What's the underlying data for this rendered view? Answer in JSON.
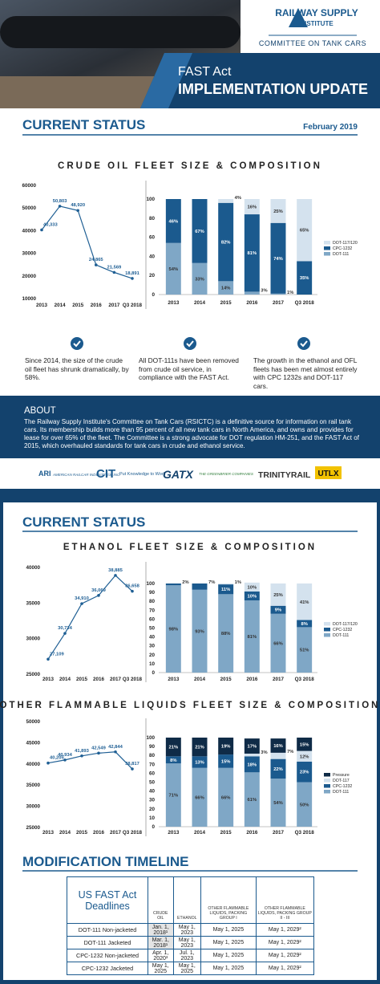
{
  "header": {
    "org_line1": "RAILWAY SUPPLY",
    "org_line2": "INSTITUTE",
    "committee": "COMMITTEE ON TANK CARS",
    "title": "FAST Act",
    "subtitle": "IMPLEMENTATION UPDATE"
  },
  "status": {
    "heading": "CURRENT STATUS",
    "date": "February 2019",
    "crude_title": "CRUDE OIL FLEET SIZE & COMPOSITION",
    "points": [
      "Since 2014, the size of the crude oil fleet has shrunk dramatically, by 58%.",
      "All DOT-111s have been removed from crude oil service, in compliance with the FAST Act.",
      "The growth in the ethanol and OFL fleets has been met almost entirely with CPC 1232s and DOT-117 cars."
    ]
  },
  "about": {
    "heading": "ABOUT",
    "text": "The Railway Supply Institute's Committee on Tank Cars (RSICTC) is a definitive source for information on rail tank cars. Its membership builds more than 95 percent of all new tank cars in North America, and owns and provides for lease for over 65% of the fleet. The Committee is a strong advocate for DOT regulation HM-251, and the FAST Act of 2015, which overhauled standards for tank cars in crude and ethanol service."
  },
  "logos": [
    {
      "mark": "ARI",
      "name": "AMERICAN RAILCAR INDUSTRIES, INC."
    },
    {
      "mark": "CIT",
      "name": "Put Knowledge to Work"
    },
    {
      "mark": "GATX"
    },
    {
      "mark": "THE GREENBRIER COMPANIES"
    },
    {
      "mark": "TRINITYRAIL"
    },
    {
      "mark": "UTLX"
    }
  ],
  "status2": {
    "heading": "CURRENT STATUS",
    "ethanol_title": "ETHANOL FLEET SIZE & COMPOSITION",
    "other_title": "OTHER FLAMMABLE LIQUIDS FLEET SIZE & COMPOSITION"
  },
  "timeline": {
    "heading": "MODIFICATION TIMELINE",
    "corner": "US FAST Act Deadlines",
    "columns": [
      "CRUDE OIL",
      "ETHANOL",
      "OTHER FLAMMABLE LIQUIDS, PACKING GROUP I",
      "OTHER FLAMMABLE LIQUIDS, PACKING GROUP II - III"
    ],
    "rows": [
      {
        "label": "DOT-111 Non-jacketed",
        "cells": [
          "Jan. 1, 2018¹",
          "May 1, 2023",
          "May 1, 2025",
          "May 1, 2029²"
        ]
      },
      {
        "label": "DOT-111 Jacketed",
        "cells": [
          "Mar. 1, 2018¹",
          "May 1, 2023",
          "May 1, 2025",
          "May 1, 2029²"
        ]
      },
      {
        "label": "CPC-1232 Non-jacketed",
        "cells": [
          "Apr. 1, 2020³",
          "Jul. 1, 2023",
          "May 1, 2025",
          "May 1, 2029²"
        ]
      },
      {
        "label": "CPC-1232 Jacketed",
        "cells": [
          "May 1, 2025",
          "May 1, 2025",
          "May 1, 2025",
          "May 1, 2029²"
        ]
      }
    ]
  },
  "chart_data": [
    {
      "type": "line",
      "categories": [
        "2013",
        "2014",
        "2015",
        "2016",
        "2017",
        "Q3 2018"
      ],
      "values": [
        40333,
        50803,
        48920,
        24865,
        21569,
        18891
      ],
      "value_labels": [
        "40,333",
        "50,803",
        "48,920",
        "24,865",
        "21,569",
        "18,891"
      ],
      "color": "#1f5f94",
      "ylim": [
        10000,
        60000
      ],
      "yticks": [
        10000,
        20000,
        30000,
        40000,
        50000,
        60000
      ]
    },
    {
      "type": "stacked_bar",
      "categories": [
        "2013",
        "2014",
        "2015",
        "2016",
        "2017",
        "Q3 2018"
      ],
      "ylim": [
        0,
        100
      ],
      "yticks": [
        0,
        20,
        40,
        60,
        80,
        100
      ],
      "series": [
        {
          "name": "DOT-111",
          "color": "#7fa7c6",
          "values": [
            54,
            33,
            14,
            3,
            1,
            0
          ],
          "value_labels": [
            "54%",
            "33%",
            "14%",
            "3%",
            "1%",
            null
          ]
        },
        {
          "name": "CPC-1232",
          "color": "#1b5a8e",
          "values": [
            46,
            67,
            82,
            81,
            74,
            35
          ],
          "value_labels": [
            "46%",
            "67%",
            "82%",
            "81%",
            "74%",
            "35%"
          ]
        },
        {
          "name": "DOT-117/120",
          "color": "#d4e2ee",
          "values": [
            0,
            0,
            4,
            16,
            25,
            65
          ],
          "value_labels": [
            null,
            null,
            "4%",
            "16%",
            "25%",
            "65%"
          ]
        }
      ]
    },
    {
      "type": "line",
      "categories": [
        "2013",
        "2014",
        "2015",
        "2016",
        "2017",
        "Q3 2018"
      ],
      "values": [
        27109,
        30734,
        34910,
        36069,
        38885,
        36658
      ],
      "value_labels": [
        "27,109",
        "30,734",
        "34,910",
        "36,069",
        "38,885",
        "36,658"
      ],
      "color": "#1f5f94",
      "ylim": [
        25000,
        40000
      ],
      "yticks": [
        25000,
        30000,
        35000,
        40000
      ]
    },
    {
      "type": "stacked_bar",
      "categories": [
        "2013",
        "2014",
        "2015",
        "2016",
        "2017",
        "Q3 2018"
      ],
      "ylim": [
        0,
        100
      ],
      "yticks": [
        0,
        10,
        20,
        30,
        40,
        50,
        60,
        70,
        80,
        90,
        100
      ],
      "series": [
        {
          "name": "DOT-111",
          "color": "#7fa7c6",
          "values": [
            98,
            93,
            88,
            81,
            66,
            51
          ],
          "value_labels": [
            "98%",
            "93%",
            "88%",
            "81%",
            "66%",
            "51%"
          ]
        },
        {
          "name": "CPC-1232",
          "color": "#1b5a8e",
          "values": [
            2,
            7,
            11,
            10,
            9,
            8
          ],
          "value_labels": [
            "2%",
            "7%",
            "11%",
            "10%",
            "9%",
            "8%"
          ]
        },
        {
          "name": "DOT-117/120",
          "color": "#d4e2ee",
          "values": [
            0,
            0,
            1,
            10,
            25,
            41
          ],
          "value_labels": [
            null,
            null,
            "1%",
            "10%",
            "25%",
            "41%"
          ]
        }
      ]
    },
    {
      "type": "line",
      "categories": [
        "2013",
        "2014",
        "2015",
        "2016",
        "2017",
        "Q3 2018"
      ],
      "values": [
        40205,
        40934,
        41893,
        42549,
        42844,
        38817
      ],
      "value_labels": [
        "40,205",
        "40,934",
        "41,893",
        "42,549",
        "42,844",
        "38,817"
      ],
      "color": "#1f5f94",
      "ylim": [
        25000,
        50000
      ],
      "yticks": [
        25000,
        30000,
        35000,
        40000,
        45000,
        50000
      ]
    },
    {
      "type": "stacked_bar",
      "categories": [
        "2013",
        "2014",
        "2015",
        "2016",
        "2017",
        "Q3 2018"
      ],
      "ylim": [
        0,
        100
      ],
      "yticks": [
        0,
        10,
        20,
        30,
        40,
        50,
        60,
        70,
        80,
        90,
        100
      ],
      "series": [
        {
          "name": "DOT-111",
          "color": "#7fa7c6",
          "values": [
            71,
            66,
            66,
            61,
            54,
            50
          ],
          "value_labels": [
            "71%",
            "66%",
            "66%",
            "61%",
            "54%",
            "50%"
          ]
        },
        {
          "name": "CPC-1232",
          "color": "#1b5a8e",
          "values": [
            8,
            13,
            15,
            18,
            22,
            23
          ],
          "value_labels": [
            "8%",
            "13%",
            "15%",
            "18%",
            "22%",
            "23%"
          ]
        },
        {
          "name": "DOT-117",
          "color": "#d4e2ee",
          "values": [
            0,
            0,
            0,
            3,
            7,
            12
          ],
          "value_labels": [
            null,
            null,
            null,
            "3%",
            "7%",
            "12%"
          ]
        },
        {
          "name": "Pressure",
          "color": "#0f2b47",
          "values": [
            21,
            21,
            19,
            17,
            16,
            15
          ],
          "value_labels": [
            "21%",
            "21%",
            "19%",
            "17%",
            "16%",
            "15%"
          ]
        }
      ]
    }
  ]
}
